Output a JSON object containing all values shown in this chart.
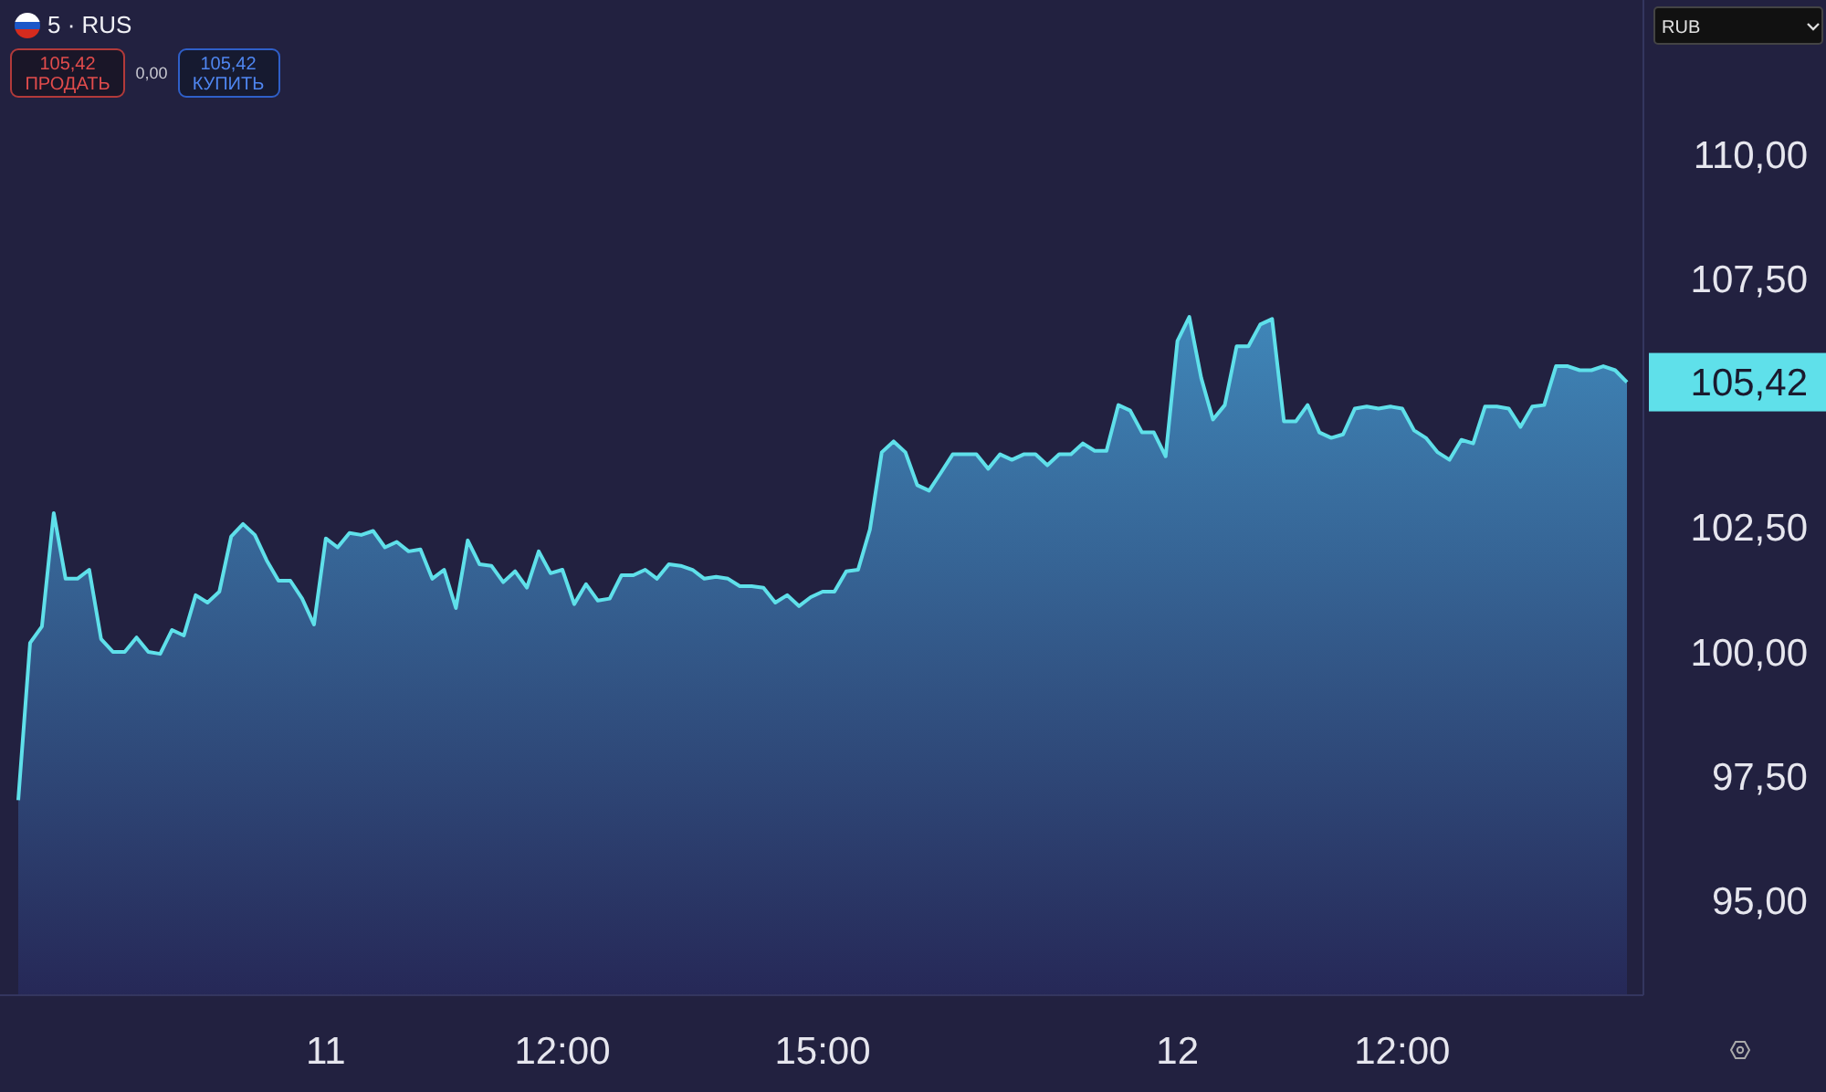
{
  "chart_data": {
    "type": "area",
    "title": "5 · RUS",
    "color": "#5fe0ea",
    "categories": [
      null,
      null,
      null,
      null,
      null,
      null,
      null,
      null,
      null,
      null,
      null,
      null,
      null,
      null,
      null,
      null,
      null,
      null,
      null,
      null,
      null,
      null,
      null,
      null,
      null,
      null,
      "11",
      null,
      null,
      null,
      null,
      null,
      null,
      null,
      null,
      null,
      null,
      null,
      null,
      null,
      null,
      null,
      null,
      null,
      null,
      null,
      "12:00",
      null,
      null,
      null,
      null,
      null,
      null,
      null,
      null,
      null,
      null,
      null,
      null,
      null,
      null,
      null,
      null,
      null,
      null,
      null,
      null,
      null,
      "15:00",
      null,
      null,
      null,
      null,
      null,
      null,
      null,
      null,
      null,
      null,
      null,
      null,
      null,
      null,
      null,
      null,
      null,
      null,
      null,
      null,
      null,
      null,
      null,
      null,
      null,
      null,
      null,
      null,
      null,
      "12",
      null,
      null,
      null,
      null,
      null,
      null,
      null,
      null,
      null,
      null,
      null,
      null,
      null,
      null,
      null,
      null,
      null,
      null,
      "12:00",
      null,
      null,
      null,
      null,
      null,
      null,
      null,
      null,
      null,
      null,
      null,
      null,
      null,
      null,
      null,
      null,
      null,
      null,
      null
    ],
    "values": [
      97.02,
      100.18,
      100.51,
      102.79,
      101.47,
      101.47,
      101.65,
      100.26,
      100.0,
      100.0,
      100.29,
      100.0,
      99.96,
      100.44,
      100.33,
      101.14,
      100.99,
      101.21,
      102.32,
      102.57,
      102.35,
      101.84,
      101.43,
      101.43,
      101.07,
      100.55,
      102.28,
      102.1,
      102.39,
      102.35,
      102.43,
      102.1,
      102.21,
      102.02,
      102.06,
      101.47,
      101.65,
      100.88,
      102.24,
      101.76,
      101.73,
      101.4,
      101.62,
      101.29,
      102.02,
      101.58,
      101.65,
      100.96,
      101.36,
      101.03,
      101.07,
      101.54,
      101.54,
      101.65,
      101.47,
      101.76,
      101.73,
      101.65,
      101.47,
      101.51,
      101.47,
      101.32,
      101.32,
      101.29,
      100.99,
      101.14,
      100.92,
      101.1,
      101.21,
      101.21,
      101.62,
      101.65,
      102.46,
      104.01,
      104.23,
      104.01,
      103.35,
      103.24,
      103.6,
      103.97,
      103.97,
      103.97,
      103.68,
      103.97,
      103.86,
      103.97,
      103.97,
      103.75,
      103.97,
      103.97,
      104.19,
      104.04,
      104.04,
      104.96,
      104.85,
      104.41,
      104.41,
      103.93,
      106.25,
      106.73,
      105.51,
      104.67,
      104.96,
      106.14,
      106.14,
      106.58,
      106.69,
      104.63,
      104.63,
      104.96,
      104.41,
      104.3,
      104.37,
      104.89,
      104.93,
      104.89,
      104.93,
      104.89,
      104.45,
      104.3,
      104.01,
      103.86,
      104.26,
      104.19,
      104.93,
      104.93,
      104.89,
      104.52,
      104.93,
      104.96,
      105.74,
      105.74,
      105.66,
      105.66,
      105.74,
      105.66,
      105.42
    ],
    "ylim": [
      93.1,
      113.1
    ],
    "yticks": [
      {
        "value": 95,
        "label": "95,00"
      },
      {
        "value": 97.5,
        "label": "97,50"
      },
      {
        "value": 100,
        "label": "100,00"
      },
      {
        "value": 102.5,
        "label": "102,50"
      },
      {
        "value": 107.5,
        "label": "107,50"
      },
      {
        "value": 110,
        "label": "110,00"
      }
    ],
    "grid": false,
    "annotations": [
      "105,42",
      "ПРОДАТЬ",
      "0,00",
      "105,42",
      "КУПИТЬ",
      "RUB",
      "105,42"
    ]
  }
}
